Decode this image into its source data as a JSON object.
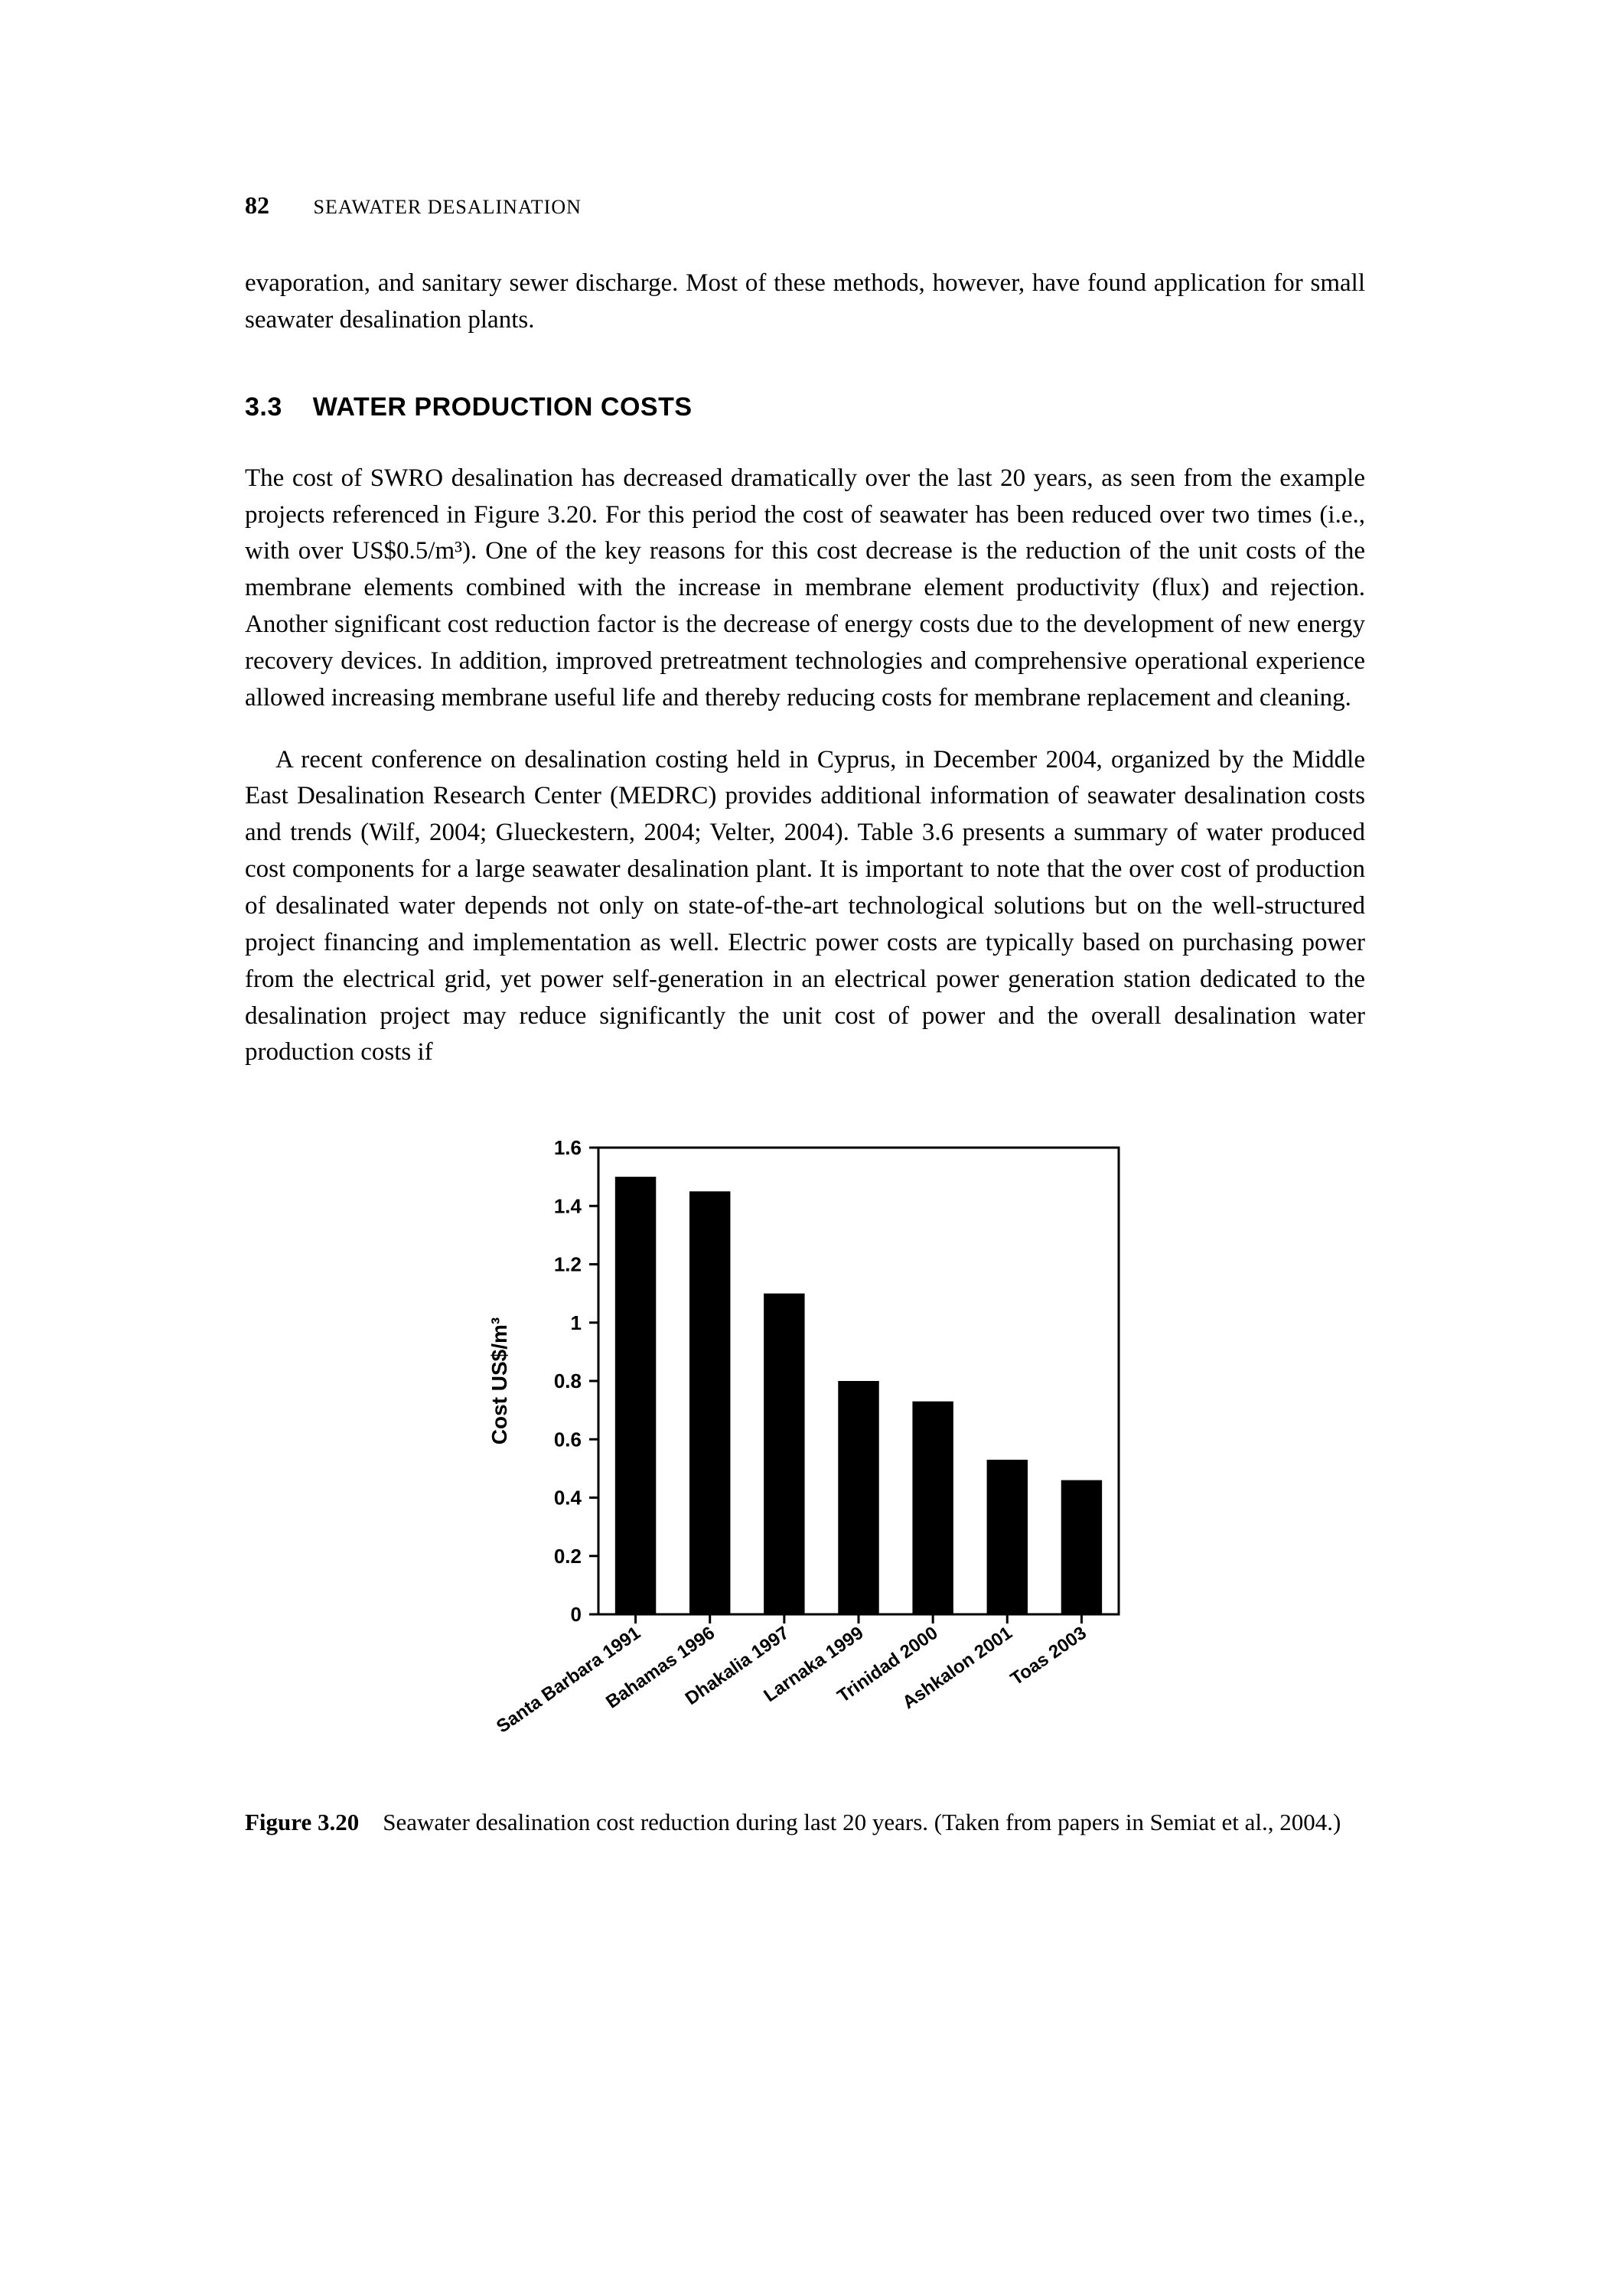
{
  "page_number": "82",
  "running_head": "SEAWATER DESALINATION",
  "intro_para": "evaporation, and sanitary sewer discharge. Most of these methods, however, have found application for small seawater desalination plants.",
  "section": {
    "number": "3.3",
    "title": "WATER PRODUCTION COSTS"
  },
  "para1": "The cost of SWRO desalination has decreased dramatically over the last 20 years, as seen from the example projects referenced in Figure 3.20. For this period the cost of seawater has been reduced over two times (i.e., with over US$0.5/m³). One of the key reasons for this cost decrease is the reduction of the unit costs of the membrane elements combined with the increase in membrane element productivity (flux) and rejection. Another significant cost reduction factor is the decrease of energy costs due to the development of new energy recovery devices. In addition, improved pretreatment technologies and comprehensive operational experience allowed increasing membrane useful life and thereby reducing costs for membrane replacement and cleaning.",
  "para2": "A recent conference on desalination costing held in Cyprus, in December 2004, organized by the Middle East Desalination Research Center (MEDRC) provides additional information of seawater desalination costs and trends (Wilf, 2004; Glueckestern, 2004; Velter, 2004). Table 3.6 presents a summary of water produced cost components for a large seawater desalination plant. It is important to note that the over cost of production of desalinated water depends not only on state-of-the-art technological solutions but on the well-structured project financing and implementation as well. Electric power costs are typically based on purchasing power from the electrical grid, yet power self-generation in an electrical power generation station dedicated to the desalination project may reduce significantly the unit cost of power and the overall desalination water production costs if",
  "figure": {
    "type": "bar",
    "ylabel": "Cost US$/m³",
    "ylim": [
      0,
      1.6
    ],
    "yticks": [
      0,
      0.2,
      0.4,
      0.6,
      0.8,
      1,
      1.2,
      1.4,
      1.6
    ],
    "ytick_labels": [
      "0",
      "0.2",
      "0.4",
      "0.6",
      "0.8",
      "1",
      "1.2",
      "1.4",
      "1.6"
    ],
    "categories": [
      "Santa Barbara 1991",
      "Bahamas 1996",
      "Dhakalia 1997",
      "Larnaka 1999",
      "Trinidad 2000",
      "Ashkalon 2001",
      "Toas 2003"
    ],
    "values": [
      1.5,
      1.45,
      1.1,
      0.8,
      0.73,
      0.53,
      0.46
    ],
    "bar_color": "#000000",
    "axis_color": "#000000",
    "bar_width": 0.55,
    "background_color": "#ffffff",
    "axis_linewidth": 3,
    "tick_len": 12,
    "font_family": "Arial, Helvetica, sans-serif",
    "tick_fontsize": 26,
    "ylabel_fontsize": 28,
    "xlabel_fontsize": 24,
    "xlabel_rotation": -35
  },
  "caption": {
    "label": "Figure 3.20",
    "text": "Seawater desalination cost reduction during last 20 years. (Taken from papers in Semiat et al., 2004.)"
  }
}
